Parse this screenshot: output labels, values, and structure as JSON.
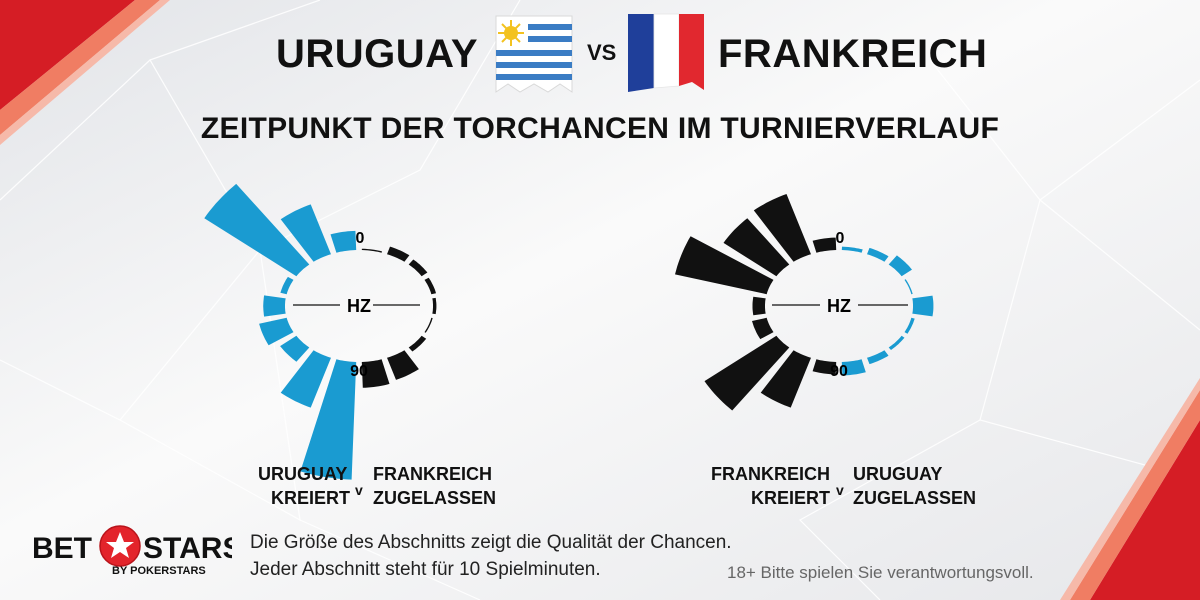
{
  "header": {
    "team_left": "URUGUAY",
    "team_right": "FRANKREICH",
    "vs": "VS",
    "subtitle": "ZEITPUNKT DER TORCHANCEN IM TURNIERVERLAUF"
  },
  "chart_data": [
    {
      "type": "radial-bar",
      "start_label": "0",
      "half_label": "HZ",
      "end_label": "90",
      "left_label": [
        "URUGUAY",
        "KREIERT"
      ],
      "separator": "v",
      "right_label": [
        "FRANKREICH",
        "ZUGELASSEN"
      ],
      "series": [
        {
          "values": [
            0.15,
            0.42,
            0.85,
            0.05,
            0.17,
            0.22,
            0.15,
            0.42,
            0.92
          ],
          "color": "#1a9bd1"
        },
        {
          "values": [
            0.02,
            0.12,
            0.1,
            0.07,
            0.05,
            0.02,
            0.08,
            0.35,
            0.38
          ],
          "color": "#111111"
        }
      ]
    },
    {
      "type": "radial-bar",
      "start_label": "0",
      "half_label": "HZ",
      "end_label": "90",
      "left_label": [
        "FRANKREICH",
        "KREIERT"
      ],
      "separator": "v",
      "right_label": [
        "URUGUAY",
        "ZUGELASSEN"
      ],
      "series": [
        {
          "values": [
            0.1,
            0.52,
            0.5,
            0.75,
            0.1,
            0.12,
            0.68,
            0.43,
            0.1
          ],
          "color": "#111111"
        },
        {
          "values": [
            0.05,
            0.1,
            0.18,
            0.02,
            0.3,
            0.05,
            0.05,
            0.1,
            0.2
          ],
          "color": "#1a9bd1"
        }
      ]
    }
  ],
  "footer": {
    "brand_main_left": "BET",
    "brand_main_right": "STARS",
    "brand_sub": "BY POKERSTARS",
    "note_line1": "Die Größe des Abschnitts zeigt die Qualität der Chancen.",
    "note_line2": "Jeder Abschnitt steht für 10 Spielminuten.",
    "disclaimer": "18+ Bitte spielen Sie verantwortungsvoll."
  },
  "colors": {
    "blue": "#1a9bd1",
    "black": "#111111",
    "red": "#e3242b"
  },
  "icons": [
    "uruguay-flag-icon",
    "france-flag-icon",
    "star-icon"
  ]
}
